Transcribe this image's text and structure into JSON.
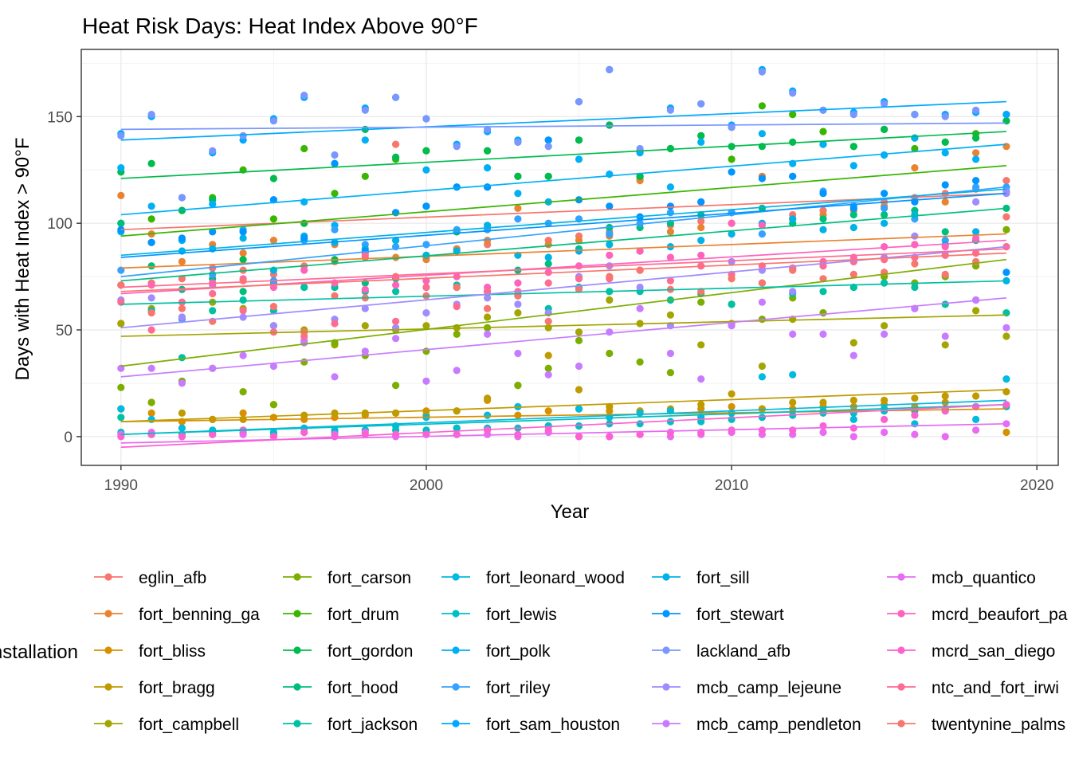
{
  "chart_data": {
    "type": "scatter",
    "title": "Heat Risk Days: Heat Index Above 90°F",
    "xlabel": "Year",
    "ylabel": "Days with Heat Index > 90°F",
    "xlim": [
      1988.7,
      2020.7
    ],
    "ylim": [
      -13.5,
      181.5
    ],
    "xticks": [
      1990,
      2000,
      2010,
      2020
    ],
    "yticks": [
      0,
      50,
      100,
      150
    ],
    "grid": true,
    "legend_title": "installation",
    "legend_position": "bottom",
    "series": [
      {
        "name": "eglin_afb",
        "color": "#F8766D",
        "trend": [
          97.0,
          114.0
        ],
        "values": [
          71,
          72,
          74,
          79,
          78,
          76,
          80,
          82,
          84,
          137,
          84,
          88,
          90,
          122,
          92,
          94,
          96,
          121,
          99,
          101,
          105,
          122,
          104,
          106,
          108,
          110,
          112,
          114,
          116,
          120
        ]
      },
      {
        "name": "fort_benning_ga",
        "color": "#EA8331",
        "trend": [
          79.0,
          95.0
        ],
        "values": [
          113,
          95,
          82,
          90,
          86,
          92,
          100,
          90,
          86,
          84,
          83,
          88,
          92,
          107,
          90,
          92,
          94,
          120,
          96,
          98,
          100,
          122,
          102,
          104,
          106,
          108,
          126,
          110,
          133,
          136
        ]
      },
      {
        "name": "fort_bliss",
        "color": "#D89000",
        "trend": [
          7.0,
          13.0
        ],
        "values": [
          53,
          11,
          7,
          8,
          11,
          9,
          8,
          9,
          10,
          11,
          12,
          12,
          17,
          10,
          12,
          13,
          12,
          12,
          12,
          13,
          14,
          13,
          13,
          14,
          14,
          15,
          14,
          16,
          14,
          2
        ]
      },
      {
        "name": "fort_bragg",
        "color": "#C09B00",
        "trend": [
          7.0,
          22.0
        ],
        "values": [
          13,
          16,
          11,
          8,
          8,
          15,
          10,
          11,
          11,
          11,
          10,
          12,
          18,
          24,
          38,
          22,
          14,
          12,
          13,
          15,
          20,
          13,
          16,
          16,
          17,
          17,
          18,
          19,
          19,
          21
        ]
      },
      {
        "name": "fort_campbell",
        "color": "#A3A500",
        "trend": [
          47.0,
          57.0
        ],
        "values": [
          53,
          60,
          56,
          63,
          60,
          52,
          50,
          43,
          52,
          50,
          52,
          51,
          56,
          58,
          51,
          49,
          64,
          53,
          57,
          43,
          53,
          33,
          55,
          58,
          44,
          52,
          60,
          43,
          59,
          47
        ]
      },
      {
        "name": "fort_carson",
        "color": "#7CAE00",
        "trend": [
          33.0,
          83.0
        ],
        "values": [
          23,
          16,
          26,
          32,
          21,
          15,
          35,
          44,
          38,
          24,
          40,
          48,
          51,
          24,
          32,
          45,
          39,
          35,
          30,
          63,
          62,
          55,
          65,
          58,
          70,
          75,
          72,
          75,
          80,
          97
        ]
      },
      {
        "name": "fort_drum",
        "color": "#39B600",
        "trend": [
          94.0,
          127.0
        ],
        "values": [
          100,
          102,
          106,
          112,
          125,
          102,
          135,
          114,
          122,
          130,
          134,
          96,
          134,
          122,
          122,
          139,
          146,
          122,
          135,
          141,
          130,
          155,
          151,
          143,
          136,
          144,
          135,
          138,
          142,
          148
        ]
      },
      {
        "name": "fort_gordon",
        "color": "#00BB4E",
        "trend": [
          121.0,
          143.0
        ],
        "values": [
          124,
          128,
          106,
          111,
          83,
          121,
          100,
          83,
          144,
          131,
          134,
          96,
          134,
          122,
          122,
          139,
          146,
          122,
          135,
          141,
          136,
          136,
          138,
          137,
          136,
          144,
          140,
          138,
          140,
          148
        ]
      },
      {
        "name": "fort_hood",
        "color": "#00BF7D",
        "trend": [
          73.0,
          107.0
        ],
        "values": [
          100,
          80,
          69,
          74,
          68,
          72,
          70,
          70,
          72,
          74,
          108,
          70,
          117,
          78,
          81,
          88,
          98,
          98,
          100,
          104,
          105,
          107,
          100,
          102,
          104,
          104,
          106,
          96,
          92,
          107
        ]
      },
      {
        "name": "fort_jackson",
        "color": "#00C1A3",
        "trend": [
          62.0,
          73.0
        ],
        "values": [
          9,
          59,
          37,
          59,
          64,
          59,
          70,
          70,
          68,
          68,
          70,
          71,
          68,
          66,
          60,
          70,
          68,
          68,
          64,
          67,
          62,
          72,
          67,
          68,
          70,
          72,
          70,
          62,
          64,
          58
        ]
      },
      {
        "name": "fort_leonard_wood",
        "color": "#00BAE0",
        "trend": [
          1.0,
          17.0
        ],
        "values": [
          13,
          8,
          4,
          3,
          3,
          2,
          4,
          3,
          3,
          5,
          9,
          4,
          10,
          14,
          5,
          13,
          9,
          11,
          12,
          9,
          11,
          28,
          29,
          12,
          8,
          13,
          6,
          12,
          8,
          27
        ]
      },
      {
        "name": "fort_lewis",
        "color": "#00BFC4",
        "trend": [
          1.0,
          15.0
        ],
        "values": [
          2,
          1,
          1,
          2,
          2,
          1,
          2,
          2,
          3,
          3,
          3,
          4,
          4,
          4,
          5,
          5,
          6,
          6,
          7,
          7,
          8,
          9,
          10,
          11,
          11,
          12,
          12,
          13,
          14,
          14
        ]
      },
      {
        "name": "fort_polk",
        "color": "#00B0F6",
        "trend": [
          104.0,
          137.0
        ],
        "values": [
          126,
          108,
          92,
          109,
          96,
          111,
          110,
          99,
          139,
          105,
          125,
          117,
          126,
          114,
          110,
          130,
          123,
          133,
          117,
          138,
          145,
          142,
          128,
          137,
          127,
          132,
          140,
          133,
          130,
          151
        ]
      },
      {
        "name": "fort_riley",
        "color": "#35A2FF",
        "trend": [
          75.0,
          117.0
        ],
        "values": [
          78,
          91,
          55,
          76,
          97,
          73,
          92,
          97,
          90,
          89,
          90,
          97,
          97,
          102,
          100,
          102,
          95,
          100,
          105,
          110,
          105,
          95,
          122,
          115,
          108,
          107,
          102,
          92,
          117,
          117
        ]
      },
      {
        "name": "fort_sam_houston",
        "color": "#00A9FF",
        "trend": [
          139.0,
          157.0
        ],
        "values": [
          142,
          150,
          112,
          133,
          139,
          149,
          159,
          128,
          154,
          159,
          149,
          137,
          143,
          139,
          139,
          157,
          172,
          134,
          154,
          156,
          146,
          172,
          162,
          153,
          152,
          157,
          151,
          151,
          152,
          151
        ]
      },
      {
        "name": "fort_sill",
        "color": "#00B2E8",
        "trend": [
          85.0,
          116.0
        ],
        "values": [
          96,
          91,
          87,
          88,
          93,
          78,
          94,
          91,
          88,
          92,
          85,
          87,
          99,
          85,
          84,
          87,
          90,
          87,
          89,
          92,
          95,
          100,
          102,
          97,
          98,
          100,
          104,
          90,
          96,
          73
        ]
      },
      {
        "name": "fort_stewart",
        "color": "#0095FF",
        "trend": [
          84.0,
          114.0
        ],
        "values": [
          97,
          91,
          93,
          96,
          96,
          111,
          93,
          128,
          87,
          105,
          108,
          117,
          117,
          138,
          139,
          111,
          108,
          103,
          108,
          110,
          124,
          121,
          122,
          114,
          107,
          114,
          110,
          118,
          120,
          77
        ]
      },
      {
        "name": "lackland_afb",
        "color": "#7997FF",
        "trend": [
          144.0,
          147.0
        ],
        "values": [
          141,
          151,
          112,
          134,
          141,
          148,
          160,
          132,
          153,
          159,
          149,
          136,
          144,
          138,
          136,
          157,
          172,
          135,
          153,
          156,
          145,
          171,
          161,
          153,
          151,
          156,
          151,
          150,
          153,
          115
        ]
      },
      {
        "name": "mcb_camp_lejeune",
        "color": "#9F8CFF",
        "trend": [
          51.0,
          89.0
        ],
        "values": [
          64,
          65,
          56,
          71,
          56,
          52,
          45,
          55,
          60,
          51,
          58,
          62,
          65,
          62,
          58,
          75,
          80,
          70,
          52,
          80,
          82,
          78,
          68,
          80,
          82,
          84,
          94,
          85,
          110,
          114
        ]
      },
      {
        "name": "mcb_camp_pendleton",
        "color": "#C77CFF",
        "trend": [
          28.0,
          65.0
        ],
        "values": [
          32,
          32,
          25,
          32,
          38,
          33,
          44,
          28,
          40,
          46,
          26,
          31,
          48,
          39,
          29,
          33,
          49,
          60,
          39,
          27,
          52,
          63,
          48,
          48,
          38,
          48,
          60,
          47,
          64,
          51
        ]
      },
      {
        "name": "mcb_quantico",
        "color": "#E76BF3",
        "trend": [
          -3.0,
          6.0
        ],
        "values": [
          1,
          2,
          0,
          1,
          1,
          0,
          2,
          1,
          2,
          0,
          1,
          1,
          1,
          0,
          2,
          0,
          0,
          1,
          0,
          1,
          2,
          1,
          1,
          2,
          0,
          2,
          1,
          0,
          3,
          6
        ]
      },
      {
        "name": "mcrd_beaufort_pa",
        "color": "#FF62BC",
        "trend": [
          67.0,
          92.0
        ],
        "values": [
          71,
          71,
          63,
          72,
          74,
          70,
          78,
          72,
          69,
          71,
          73,
          75,
          70,
          72,
          77,
          80,
          85,
          87,
          84,
          85,
          100,
          99,
          79,
          82,
          84,
          89,
          90,
          89,
          93,
          89
        ]
      },
      {
        "name": "mcrd_san_diego",
        "color": "#FD61D1",
        "trend": [
          -5.0,
          15.0
        ],
        "values": [
          0,
          1,
          0,
          1,
          3,
          0,
          2,
          0,
          1,
          1,
          1,
          1,
          3,
          1,
          3,
          0,
          0,
          1,
          2,
          2,
          3,
          3,
          3,
          5,
          4,
          8,
          10,
          12,
          14,
          15
        ]
      },
      {
        "name": "ntc_and_fort_irwi",
        "color": "#FF6C91",
        "trend": [
          70.0,
          88.0
        ],
        "values": [
          63,
          50,
          63,
          67,
          59,
          49,
          47,
          53,
          85,
          54,
          70,
          61,
          68,
          68,
          72,
          74,
          74,
          78,
          73,
          80,
          76,
          80,
          79,
          80,
          82,
          83,
          84,
          85,
          86,
          89
        ]
      },
      {
        "name": "twentynine_palms",
        "color": "#F8766D",
        "trend": [
          68.0,
          86.0
        ],
        "values": [
          71,
          58,
          60,
          54,
          73,
          61,
          49,
          66,
          65,
          75,
          66,
          70,
          60,
          66,
          54,
          69,
          75,
          78,
          69,
          68,
          74,
          72,
          78,
          74,
          76,
          77,
          81,
          76,
          82,
          103
        ]
      }
    ]
  }
}
